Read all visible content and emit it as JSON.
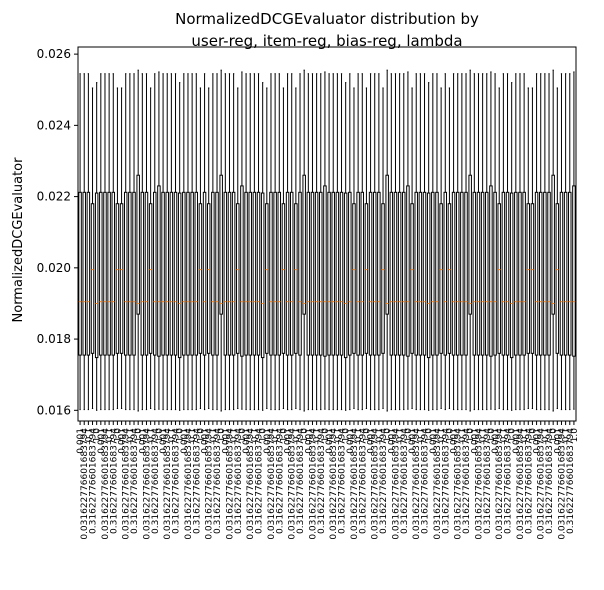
{
  "chart_data": {
    "type": "box",
    "title_line1": "NormalizedDCGEvaluator distribution by",
    "title_line2": "user-reg, item-reg, bias-reg, lambda",
    "ylabel": "NormalizedDCGEvaluator",
    "xlabel": "",
    "ylim": [
      0.0157,
      0.0262
    ],
    "yticks": [
      0.016,
      0.018,
      0.02,
      0.022,
      0.024,
      0.026
    ],
    "ytick_labels": [
      "0.016",
      "0.018",
      "0.020",
      "0.022",
      "0.024",
      "0.026"
    ],
    "grid": false,
    "box_count": 120,
    "median_color": "#ff7f0e",
    "box_color": "#000000",
    "legible_tick_labels": [
      "0.001",
      "0.031622776601683794",
      "0.1",
      "0.31622776601683794",
      "1.0"
    ],
    "box_stats_template": {
      "whisker_low": 0.01602,
      "q1": 0.01755,
      "median": 0.01905,
      "q3": 0.02212,
      "whisker_high": 0.02545
    },
    "box_stats_variants": [
      {
        "whisker_low": 0.016,
        "q1": 0.01748,
        "median": 0.019,
        "q3": 0.0221,
        "whisker_high": 0.0252
      },
      {
        "whisker_low": 0.01605,
        "q1": 0.0176,
        "median": 0.01995,
        "q3": 0.0218,
        "whisker_high": 0.02505
      },
      {
        "whisker_low": 0.01598,
        "q1": 0.0187,
        "median": 0.019,
        "q3": 0.0226,
        "whisker_high": 0.02555
      },
      {
        "whisker_low": 0.01603,
        "q1": 0.01752,
        "median": 0.01905,
        "q3": 0.0223,
        "whisker_high": 0.0255
      }
    ]
  }
}
